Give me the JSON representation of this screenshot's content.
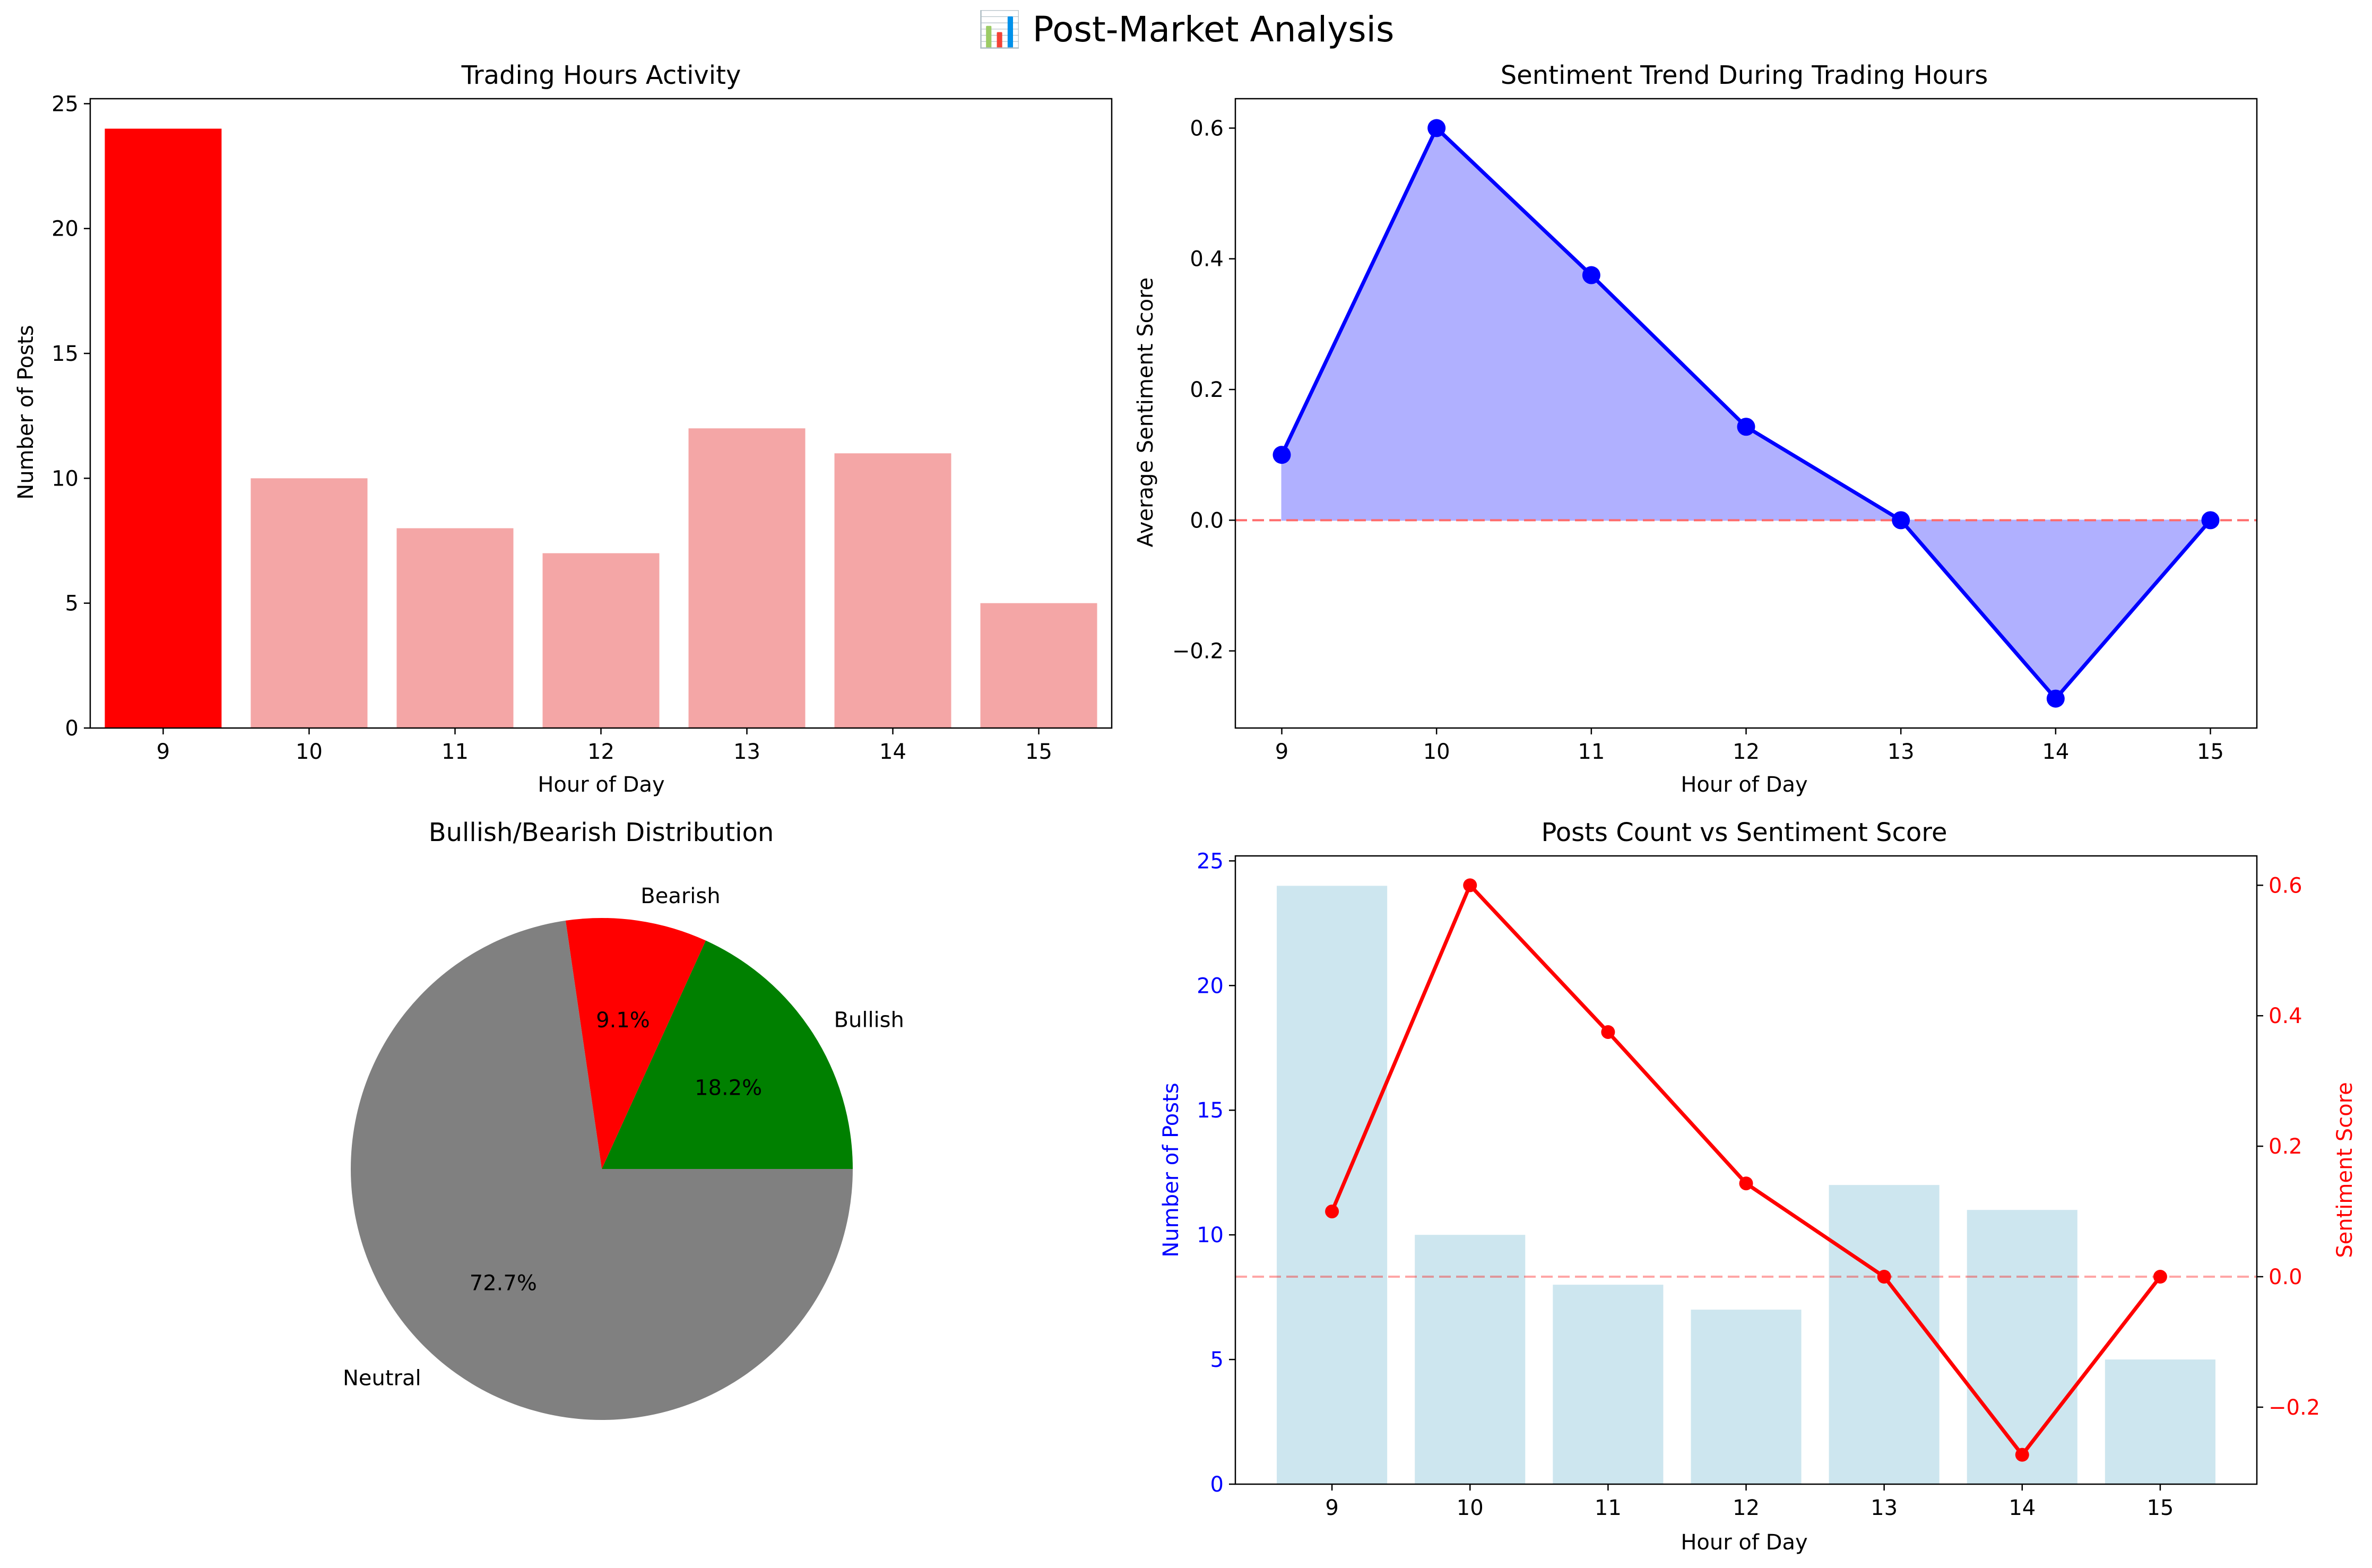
{
  "suptitle": "📊 Post-Market Analysis",
  "colors": {
    "bar_highlight": "#ff0000",
    "bar_normal": "#f4a6a6",
    "trend_line": "#0000ff",
    "trend_fill": "#b0b0ff",
    "zero_line": "#ff6b6b",
    "pie_bullish": "#008000",
    "pie_bearish": "#ff0000",
    "pie_neutral": "#808080",
    "combo_bar": "#cde6ef",
    "combo_line": "#ff0000",
    "combo_left_axis": "#0000ff",
    "combo_right_axis": "#ff0000"
  },
  "chart_data": [
    {
      "type": "bar",
      "title": "Trading Hours Activity",
      "xlabel": "Hour of Day",
      "ylabel": "Number of Posts",
      "categories": [
        "9",
        "10",
        "11",
        "12",
        "13",
        "14",
        "15"
      ],
      "values": [
        24,
        10,
        8,
        7,
        12,
        11,
        5
      ],
      "highlight": "9",
      "ylim": [
        0,
        25.2
      ],
      "yticks": [
        0,
        5,
        10,
        15,
        20,
        25
      ]
    },
    {
      "type": "area",
      "title": "Sentiment Trend During Trading Hours",
      "xlabel": "Hour of Day",
      "ylabel": "Average Sentiment Score",
      "x": [
        9,
        10,
        11,
        12,
        13,
        14,
        15
      ],
      "y": [
        0.1,
        0.6,
        0.375,
        0.143,
        0.0,
        -0.273,
        0.0
      ],
      "xlim": [
        8.7,
        15.3
      ],
      "ylim": [
        -0.318,
        0.645
      ],
      "yticks": [
        -0.2,
        0.0,
        0.2,
        0.4,
        0.6
      ],
      "ytick_labels": [
        "−0.2",
        "0.0",
        "0.2",
        "0.4",
        "0.6"
      ],
      "reference_line": 0
    },
    {
      "type": "pie",
      "title": "Bullish/Bearish Distribution",
      "slices": [
        {
          "label": "Bullish",
          "value": 18.2,
          "pct_label": "18.2%"
        },
        {
          "label": "Bearish",
          "value": 9.1,
          "pct_label": "9.1%"
        },
        {
          "label": "Neutral",
          "value": 72.7,
          "pct_label": "72.7%"
        }
      ]
    },
    {
      "type": "bar",
      "title": "Posts Count vs Sentiment Score",
      "xlabel": "Hour of Day",
      "ylabel": "Number of Posts",
      "ylabel_right": "Sentiment Score",
      "categories": [
        "9",
        "10",
        "11",
        "12",
        "13",
        "14",
        "15"
      ],
      "values": [
        24,
        10,
        8,
        7,
        12,
        11,
        5
      ],
      "ylim": [
        0,
        25.2
      ],
      "yticks": [
        0,
        5,
        10,
        15,
        20,
        25
      ],
      "line_series": {
        "values": [
          0.1,
          0.6,
          0.375,
          0.143,
          0.0,
          -0.273,
          0.0
        ],
        "ylim": [
          -0.318,
          0.645
        ],
        "yticks": [
          -0.2,
          0.0,
          0.2,
          0.4,
          0.6
        ],
        "ytick_labels": [
          "−0.2",
          "0.0",
          "0.2",
          "0.4",
          "0.6"
        ]
      },
      "reference_line": 0
    }
  ]
}
